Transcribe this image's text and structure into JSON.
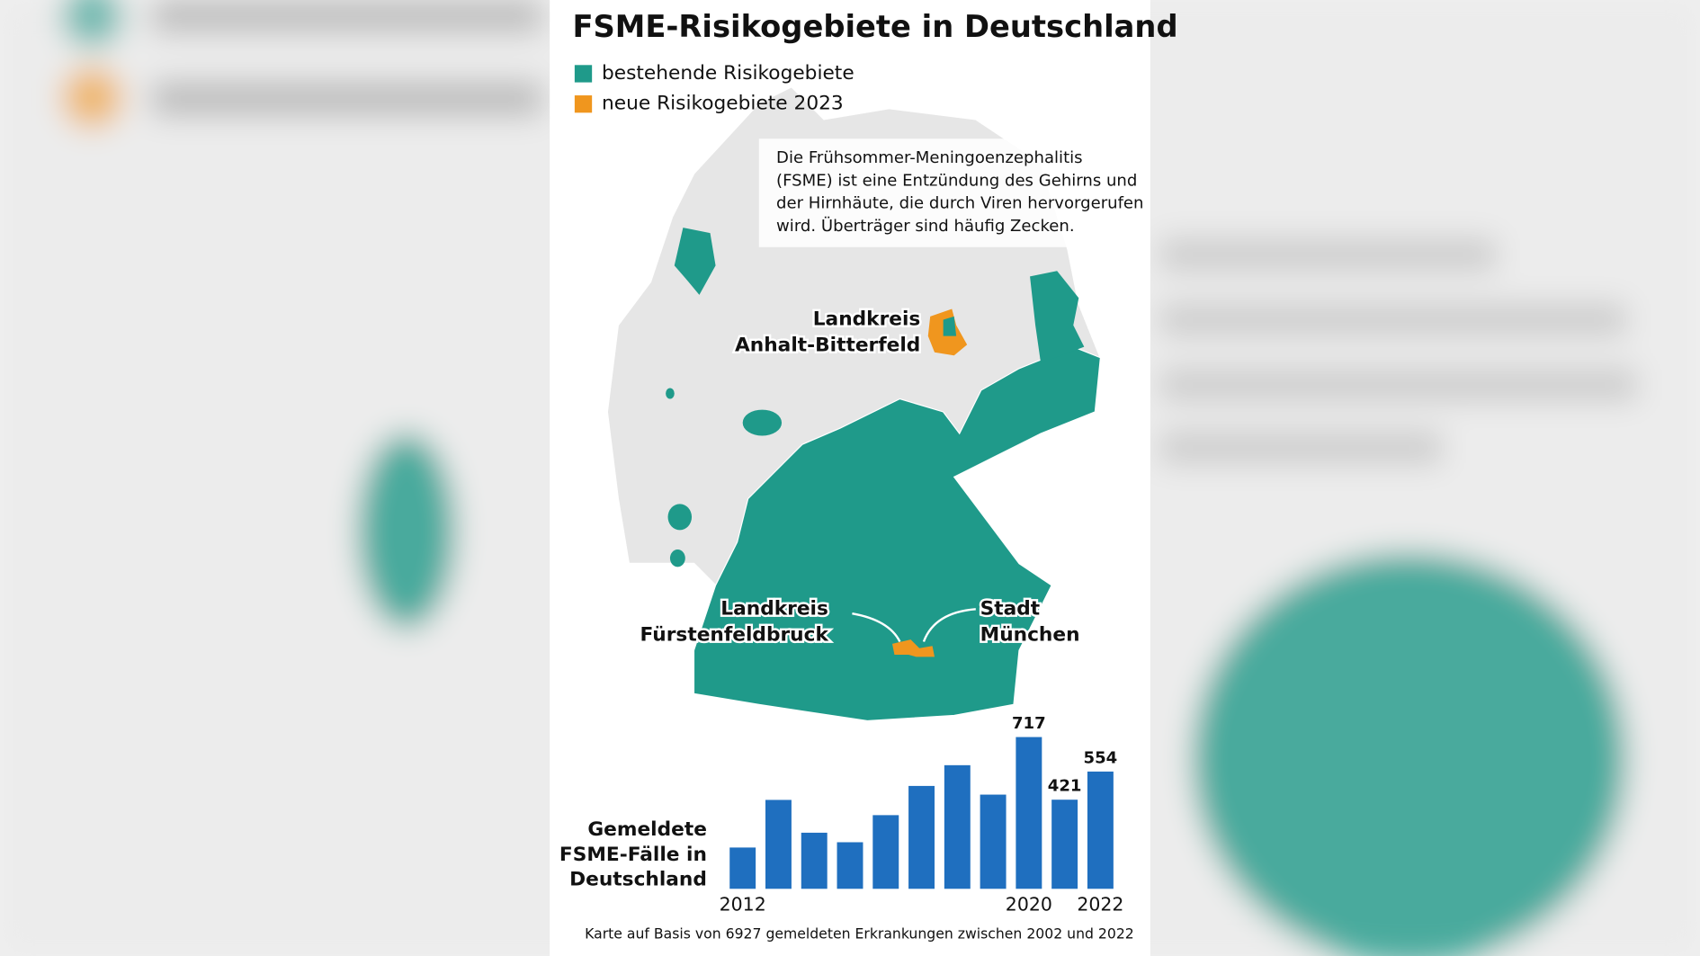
{
  "title": "FSME-Risikogebiete in Deutschland",
  "legend": [
    {
      "label": "bestehende Risikogebiete",
      "color": "#1f9a8a"
    },
    {
      "label": "neue Risikogebiete 2023",
      "color": "#f0961e"
    }
  ],
  "info_text": [
    "Die Frühsommer-Meningoenzephalitis",
    "(FSME) ist eine Entzündung des Gehirns und",
    "der Hirnhäute, die durch Viren hervorgerufen",
    "wird. Überträger sind häufig Zecken."
  ],
  "map_labels": [
    {
      "lines": [
        "Landkreis",
        "Anhalt-Bitterfeld"
      ]
    },
    {
      "lines": [
        "Landkreis",
        "Fürstenfeldbruck"
      ]
    },
    {
      "lines": [
        "Stadt",
        "München"
      ]
    }
  ],
  "chart_data": {
    "type": "bar",
    "title_lines": [
      "Gemeldete",
      "FSME-Fälle in",
      "Deutschland"
    ],
    "categories": [
      "2012",
      null,
      null,
      null,
      null,
      null,
      null,
      null,
      "2020",
      null,
      "2022"
    ],
    "values": [
      195,
      420,
      265,
      220,
      348,
      486,
      584,
      445,
      717,
      421,
      554
    ],
    "value_labels": [
      null,
      null,
      null,
      null,
      null,
      null,
      null,
      null,
      "717",
      "421",
      "554"
    ],
    "color": "#1f6fbf"
  },
  "footnote": "Karte auf Basis von 6927 gemeldeten Erkrankungen zwischen 2002 und 2022"
}
